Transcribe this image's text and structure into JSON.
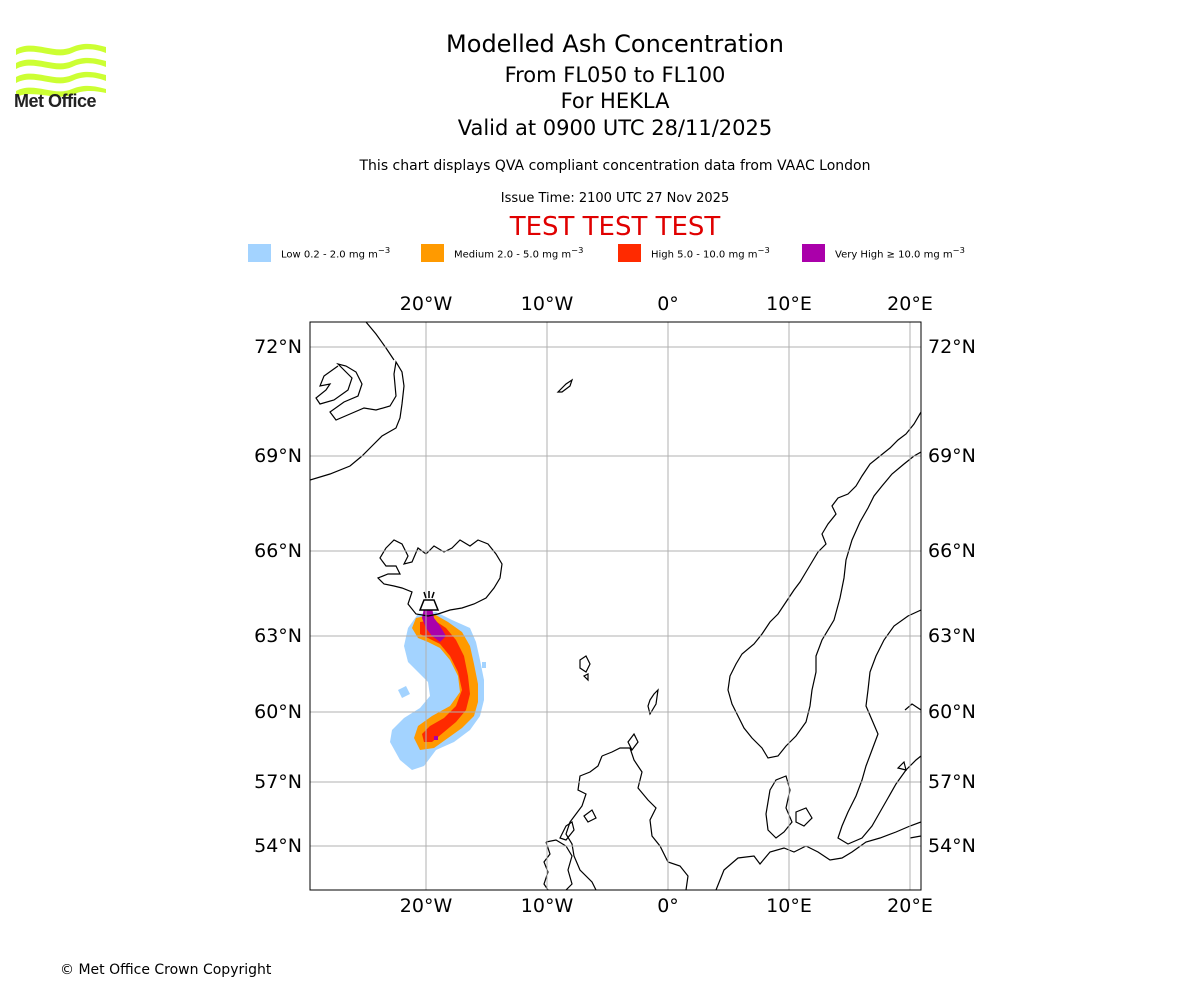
{
  "brand": {
    "name": "Met Office",
    "logo_color": "#ccff33"
  },
  "header": {
    "title": "Modelled Ash Concentration",
    "levels": "From FL050 to FL100",
    "volcano": "For HEKLA",
    "valid": "Valid at 0900 UTC 28/11/2025",
    "description": "This chart displays QVA compliant concentration data from VAAC London",
    "issue_time": "Issue Time: 2100 UTC 27 Nov 2025",
    "test_banner": "TEST TEST TEST"
  },
  "legend": [
    {
      "label": "Low 0.2 - 2.0 mg m",
      "color": "#a3d3ff"
    },
    {
      "label": "Medium 2.0 - 5.0 mg m",
      "color": "#ff9a00"
    },
    {
      "label": "High 5.0 - 10.0 mg m",
      "color": "#ff2a00"
    },
    {
      "label": "Very High ≥ 10.0 mg m",
      "color": "#aa00aa"
    }
  ],
  "legend_unit_exponent": "−3",
  "map": {
    "longitude_labels": [
      "20°W",
      "10°W",
      "0°",
      "10°E",
      "20°E"
    ],
    "latitude_labels": [
      "72°N",
      "69°N",
      "66°N",
      "63°N",
      "60°N",
      "57°N",
      "54°N"
    ],
    "volcano_marker": "volcano-icon"
  },
  "footer": {
    "copyright": "© Met Office Crown Copyright"
  }
}
